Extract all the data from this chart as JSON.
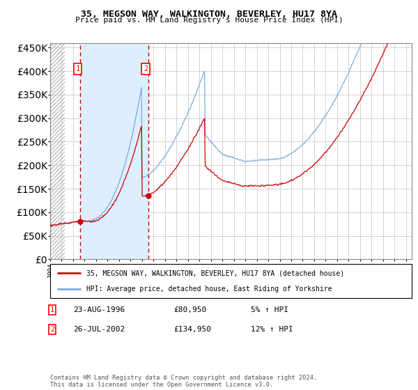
{
  "title": "35, MEGSON WAY, WALKINGTON, BEVERLEY, HU17 8YA",
  "subtitle": "Price paid vs. HM Land Registry's House Price Index (HPI)",
  "legend_line1": "35, MEGSON WAY, WALKINGTON, BEVERLEY, HU17 8YA (detached house)",
  "legend_line2": "HPI: Average price, detached house, East Riding of Yorkshire",
  "transaction1_date": "23-AUG-1996",
  "transaction1_price": 80950,
  "transaction1_hpi": "5% ↑ HPI",
  "transaction1_year": 1996.64,
  "transaction2_date": "26-JUL-2002",
  "transaction2_price": 134950,
  "transaction2_hpi": "12% ↑ HPI",
  "transaction2_year": 2002.56,
  "footer": "Contains HM Land Registry data © Crown copyright and database right 2024.\nThis data is licensed under the Open Government Licence v3.0.",
  "hpi_color": "#7aaadd",
  "price_color": "#cc0000",
  "dot_color": "#cc0000",
  "bg_shade_color": "#ddeeff",
  "grid_color": "#cccccc",
  "hatch_color": "#bbbbbb",
  "ylim": [
    0,
    460000
  ],
  "xmin": 1994.0,
  "xmax": 2025.5
}
